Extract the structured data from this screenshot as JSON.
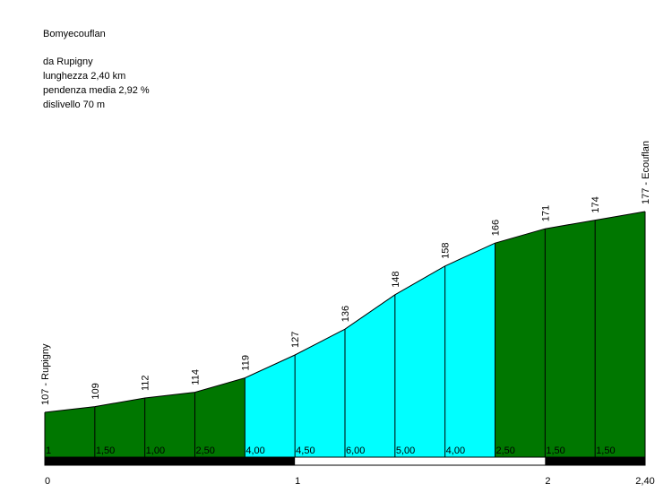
{
  "info": {
    "title": "Bomyecouflan",
    "start": "da Rupigny",
    "length": "lunghezza 2,40 km",
    "gradient": "pendenza media 2,92 %",
    "elevation_gain": "dislivello 70 m"
  },
  "colors": {
    "low_grade": "#007700",
    "high_grade": "#00ffff",
    "outline": "#000000",
    "km_bar_dark": "#000000",
    "km_bar_light": "#ffffff"
  },
  "chart_data": {
    "type": "area",
    "title": "Bomyecouflan",
    "xlabel": "",
    "ylabel": "",
    "x_unit": "km",
    "xlim": [
      0,
      2.4
    ],
    "ylim": [
      95,
      180
    ],
    "grid": false,
    "legend": "none",
    "points": [
      {
        "x": 0.0,
        "y": 107,
        "label": "107 - Rupigny"
      },
      {
        "x": 0.2,
        "y": 109,
        "label": "109"
      },
      {
        "x": 0.4,
        "y": 112,
        "label": "112"
      },
      {
        "x": 0.6,
        "y": 114,
        "label": "114"
      },
      {
        "x": 0.8,
        "y": 119,
        "label": "119"
      },
      {
        "x": 1.0,
        "y": 127,
        "label": "127"
      },
      {
        "x": 1.2,
        "y": 136,
        "label": "136"
      },
      {
        "x": 1.4,
        "y": 148,
        "label": "148"
      },
      {
        "x": 1.6,
        "y": 158,
        "label": "158"
      },
      {
        "x": 1.8,
        "y": 166,
        "label": "166"
      },
      {
        "x": 2.0,
        "y": 171,
        "label": "171"
      },
      {
        "x": 2.2,
        "y": 174,
        "label": "174"
      },
      {
        "x": 2.4,
        "y": 177,
        "label": "177 - Ecouflan"
      }
    ],
    "segments": [
      {
        "gradient": "1",
        "high": false
      },
      {
        "gradient": "1,50",
        "high": false
      },
      {
        "gradient": "1,00",
        "high": false
      },
      {
        "gradient": "2,50",
        "high": false
      },
      {
        "gradient": "4,00",
        "high": true
      },
      {
        "gradient": "4,50",
        "high": true
      },
      {
        "gradient": "6,00",
        "high": true
      },
      {
        "gradient": "5,00",
        "high": true
      },
      {
        "gradient": "4,00",
        "high": true
      },
      {
        "gradient": "2,50",
        "high": false
      },
      {
        "gradient": "1,50",
        "high": false
      },
      {
        "gradient": "1,50",
        "high": false
      }
    ],
    "km_ticks": [
      {
        "x": 0,
        "label": "0"
      },
      {
        "x": 1,
        "label": "1"
      },
      {
        "x": 2,
        "label": "2"
      },
      {
        "x": 2.4,
        "label": "2,40"
      }
    ]
  }
}
